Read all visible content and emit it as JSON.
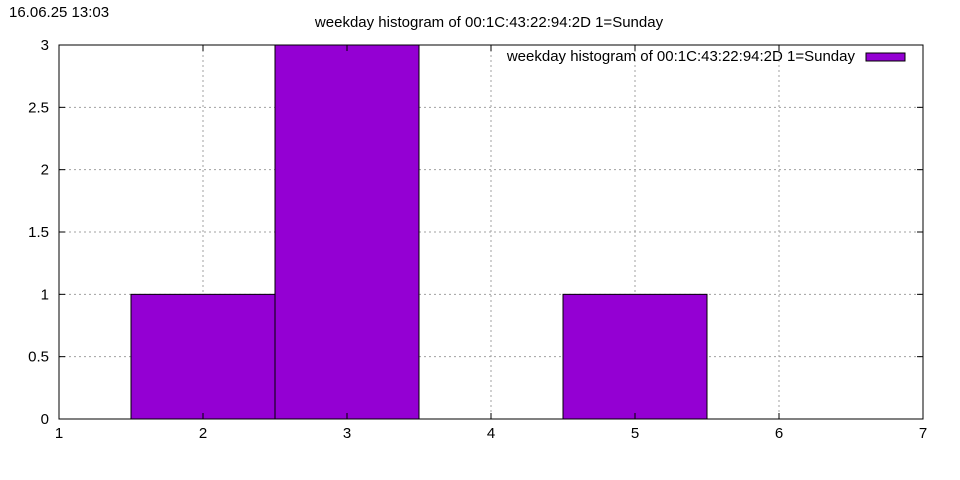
{
  "timestamp": "16.06.25 13:03",
  "chart_data": {
    "type": "bar",
    "title": "weekday histogram of 00:1C:43:22:94:2D 1=Sunday",
    "xlabel": "",
    "ylabel": "",
    "xlim": [
      1,
      7
    ],
    "ylim": [
      0,
      3
    ],
    "x_ticks": [
      "1",
      "2",
      "3",
      "4",
      "5",
      "6",
      "7"
    ],
    "y_ticks": [
      "0",
      "0.5",
      "1",
      "1.5",
      "2",
      "2.5",
      "3"
    ],
    "grid": true,
    "legend_position": "top-right",
    "bar_color": "#9400d3",
    "series": [
      {
        "name": "weekday histogram of 00:1C:43:22:94:2D 1=Sunday",
        "x": [
          2,
          3,
          5
        ],
        "values": [
          1,
          3,
          1
        ]
      }
    ]
  }
}
